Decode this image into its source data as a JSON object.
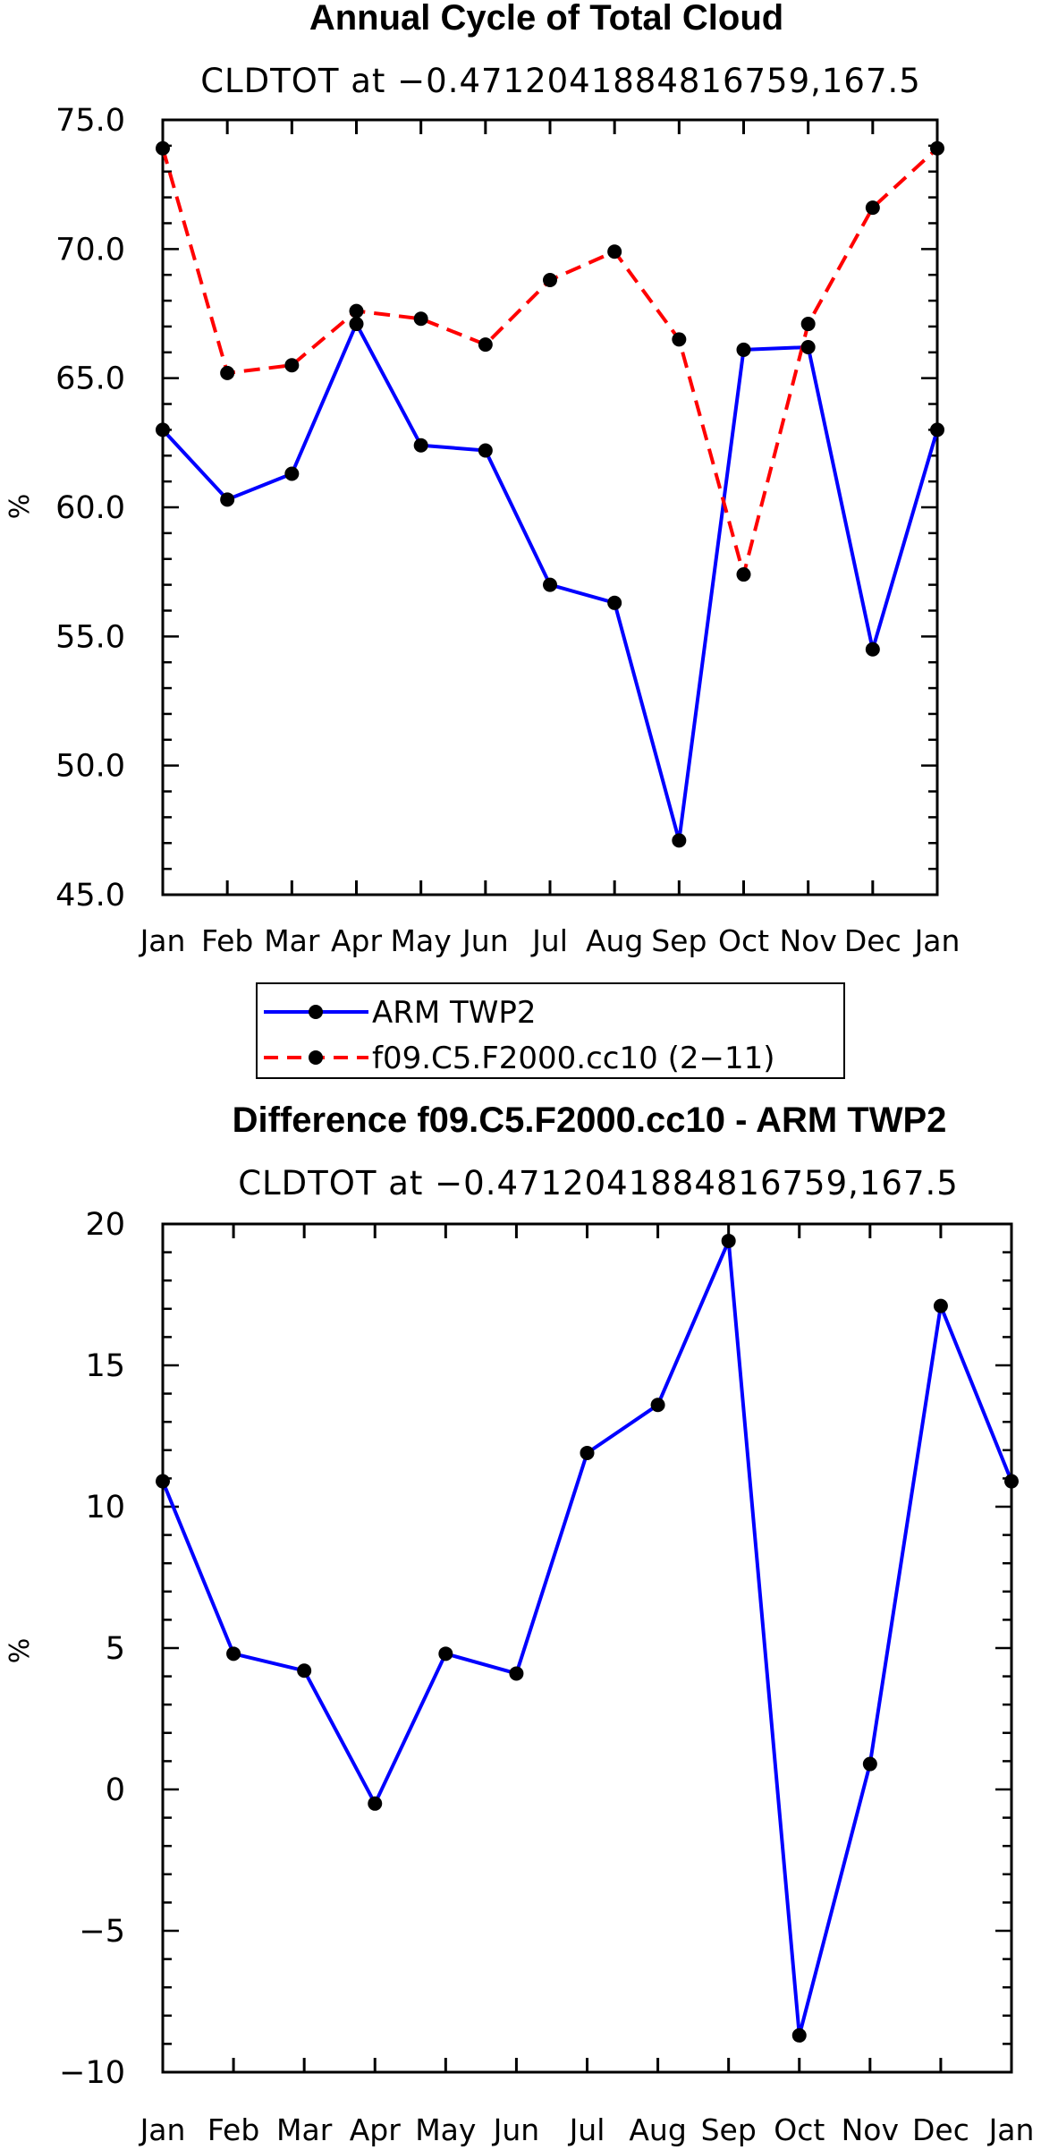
{
  "charts": [
    {
      "title": "Annual Cycle of Total Cloud",
      "subtitle": "CLDTOT at −0.4712041884816759,167.5",
      "ylabel": "%",
      "legend": [
        "ARM TWP2",
        "f09.C5.F2000.cc10 (2−11)"
      ]
    },
    {
      "title": "Difference f09.C5.F2000.cc10 - ARM TWP2",
      "subtitle": "CLDTOT at −0.4712041884816759,167.5",
      "ylabel": "%"
    }
  ],
  "chart_data": [
    {
      "type": "line",
      "title": "Annual Cycle of Total Cloud",
      "subtitle": "CLDTOT at −0.4712041884816759,167.5",
      "ylabel": "%",
      "categories": [
        "Jan",
        "Feb",
        "Mar",
        "Apr",
        "May",
        "Jun",
        "Jul",
        "Aug",
        "Sep",
        "Oct",
        "Nov",
        "Dec",
        "Jan"
      ],
      "ylim": [
        45,
        75
      ],
      "yticks": [
        "45.0",
        "50.0",
        "55.0",
        "60.0",
        "65.0",
        "70.0",
        "75.0"
      ],
      "legend_position": "below",
      "series": [
        {
          "name": "ARM TWP2",
          "color": "#0000ff",
          "dash": "solid",
          "values": [
            63.0,
            60.3,
            61.3,
            67.1,
            62.4,
            62.2,
            57.0,
            56.3,
            47.1,
            66.1,
            66.2,
            54.5,
            63.0
          ]
        },
        {
          "name": "f09.C5.F2000.cc10 (2−11)",
          "color": "#ff0000",
          "dash": "dashed",
          "values": [
            73.9,
            65.2,
            65.5,
            67.6,
            67.3,
            66.3,
            68.8,
            69.9,
            66.5,
            57.4,
            67.1,
            71.6,
            73.9
          ]
        }
      ]
    },
    {
      "type": "line",
      "title": "Difference f09.C5.F2000.cc10 - ARM TWP2",
      "subtitle": "CLDTOT at −0.4712041884816759,167.5",
      "ylabel": "%",
      "categories": [
        "Jan",
        "Feb",
        "Mar",
        "Apr",
        "May",
        "Jun",
        "Jul",
        "Aug",
        "Sep",
        "Oct",
        "Nov",
        "Dec",
        "Jan"
      ],
      "ylim": [
        -10,
        20
      ],
      "yticks": [
        "−10",
        "−5",
        "0",
        "5",
        "10",
        "15",
        "20"
      ],
      "series": [
        {
          "color": "#0000ff",
          "dash": "solid",
          "values": [
            10.9,
            4.8,
            4.2,
            -0.5,
            4.8,
            4.1,
            11.9,
            13.6,
            19.4,
            -8.7,
            0.9,
            17.1,
            10.9
          ]
        }
      ]
    }
  ]
}
